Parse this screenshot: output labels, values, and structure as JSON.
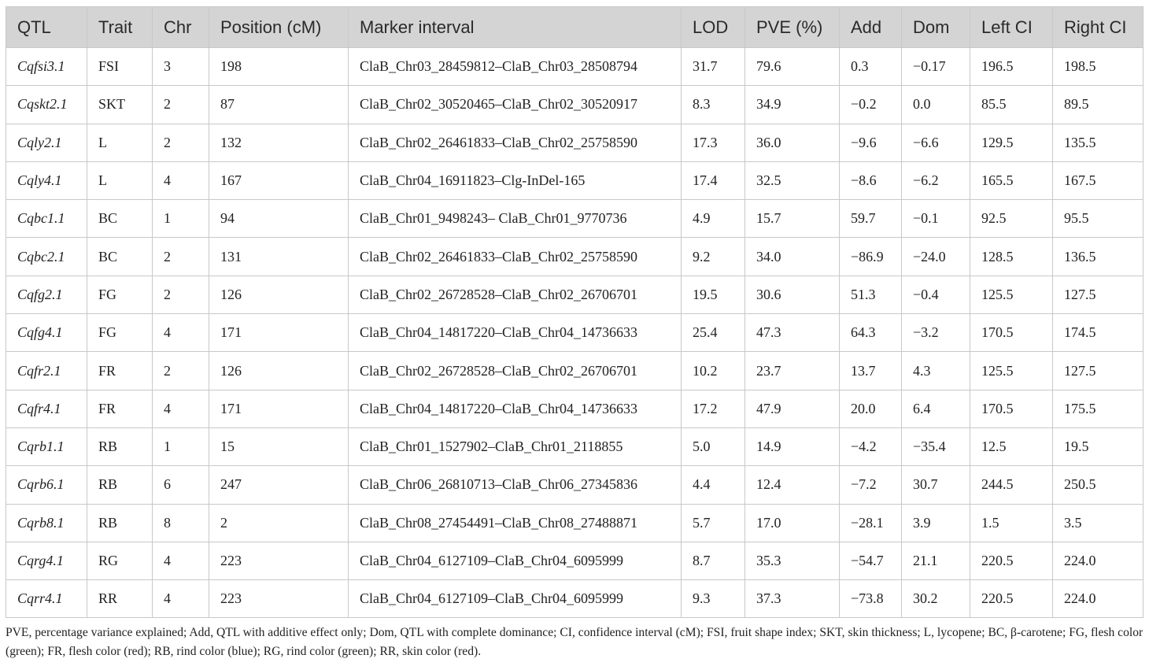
{
  "table": {
    "header": [
      "QTL",
      "Trait",
      "Chr",
      "Position (cM)",
      "Marker interval",
      "LOD",
      "PVE (%)",
      "Add",
      "Dom",
      "Left CI",
      "Right CI"
    ],
    "rows": [
      [
        "Cqfsi3.1",
        "FSI",
        "3",
        "198",
        "ClaB_Chr03_28459812–ClaB_Chr03_28508794",
        "31.7",
        "79.6",
        "0.3",
        "−0.17",
        "196.5",
        "198.5"
      ],
      [
        "Cqskt2.1",
        "SKT",
        "2",
        "87",
        "ClaB_Chr02_30520465–ClaB_Chr02_30520917",
        "8.3",
        "34.9",
        "−0.2",
        "0.0",
        "85.5",
        "89.5"
      ],
      [
        "Cqly2.1",
        "L",
        "2",
        "132",
        "ClaB_Chr02_26461833–ClaB_Chr02_25758590",
        "17.3",
        "36.0",
        "−9.6",
        "−6.6",
        "129.5",
        "135.5"
      ],
      [
        "Cqly4.1",
        "L",
        "4",
        "167",
        "ClaB_Chr04_16911823–Clg-InDel-165",
        "17.4",
        "32.5",
        "−8.6",
        "−6.2",
        "165.5",
        "167.5"
      ],
      [
        "Cqbc1.1",
        "BC",
        "1",
        "94",
        "ClaB_Chr01_9498243– ClaB_Chr01_9770736",
        "4.9",
        "15.7",
        "59.7",
        "−0.1",
        "92.5",
        "95.5"
      ],
      [
        "Cqbc2.1",
        "BC",
        "2",
        "131",
        "ClaB_Chr02_26461833–ClaB_Chr02_25758590",
        "9.2",
        "34.0",
        "−86.9",
        "−24.0",
        "128.5",
        "136.5"
      ],
      [
        "Cqfg2.1",
        "FG",
        "2",
        "126",
        "ClaB_Chr02_26728528–ClaB_Chr02_26706701",
        "19.5",
        "30.6",
        "51.3",
        "−0.4",
        "125.5",
        "127.5"
      ],
      [
        "Cqfg4.1",
        "FG",
        "4",
        "171",
        "ClaB_Chr04_14817220–ClaB_Chr04_14736633",
        "25.4",
        "47.3",
        "64.3",
        "−3.2",
        "170.5",
        "174.5"
      ],
      [
        "Cqfr2.1",
        "FR",
        "2",
        "126",
        "ClaB_Chr02_26728528–ClaB_Chr02_26706701",
        "10.2",
        "23.7",
        "13.7",
        "4.3",
        "125.5",
        "127.5"
      ],
      [
        "Cqfr4.1",
        "FR",
        "4",
        "171",
        "ClaB_Chr04_14817220–ClaB_Chr04_14736633",
        "17.2",
        "47.9",
        "20.0",
        "6.4",
        "170.5",
        "175.5"
      ],
      [
        "Cqrb1.1",
        "RB",
        "1",
        "15",
        "ClaB_Chr01_1527902–ClaB_Chr01_2118855",
        "5.0",
        "14.9",
        "−4.2",
        "−35.4",
        "12.5",
        "19.5"
      ],
      [
        "Cqrb6.1",
        "RB",
        "6",
        "247",
        "ClaB_Chr06_26810713–ClaB_Chr06_27345836",
        "4.4",
        "12.4",
        "−7.2",
        "30.7",
        "244.5",
        "250.5"
      ],
      [
        "Cqrb8.1",
        "RB",
        "8",
        "2",
        "ClaB_Chr08_27454491–ClaB_Chr08_27488871",
        "5.7",
        "17.0",
        "−28.1",
        "3.9",
        "1.5",
        "3.5"
      ],
      [
        "Cqrg4.1",
        "RG",
        "4",
        "223",
        "ClaB_Chr04_6127109–ClaB_Chr04_6095999",
        "8.7",
        "35.3",
        "−54.7",
        "21.1",
        "220.5",
        "224.0"
      ],
      [
        "Cqrr4.1",
        "RR",
        "4",
        "223",
        "ClaB_Chr04_6127109–ClaB_Chr04_6095999",
        "9.3",
        "37.3",
        "−73.8",
        "30.2",
        "220.5",
        "224.0"
      ]
    ]
  },
  "footnote": "PVE, percentage variance explained; Add, QTL with additive effect only; Dom, QTL with complete dominance; CI, confidence interval (cM); FSI, fruit shape index; SKT, skin thickness; L, lycopene; BC, β-carotene; FG, flesh color (green); FR, flesh color (red); RB, rind color (blue); RG, rind color (green); RR, skin color (red)."
}
